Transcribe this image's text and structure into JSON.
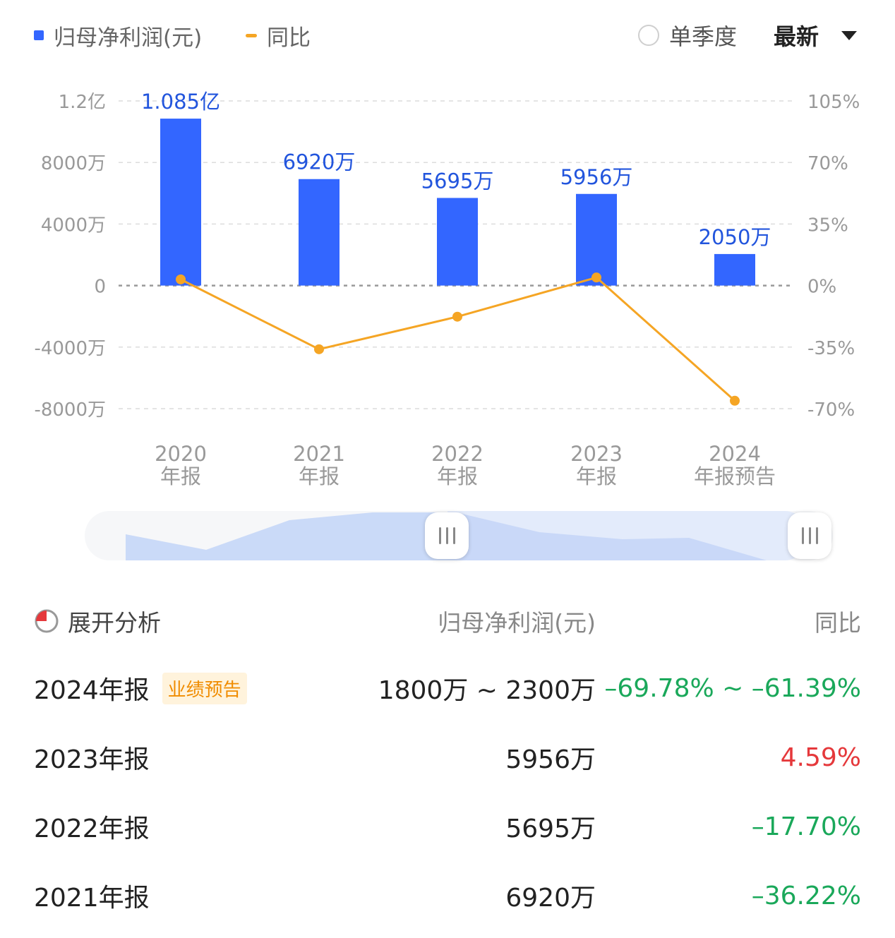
{
  "legend": {
    "bar_label": "归母净利润(元)",
    "line_label": "同比"
  },
  "controls": {
    "quarter_label": "单季度",
    "latest_label": "最新"
  },
  "colors": {
    "bar": "#3366ff",
    "line": "#f5a524",
    "negative": "#1aa85a",
    "positive": "#e5383b"
  },
  "chart_data": {
    "type": "bar",
    "categories": [
      [
        "2020",
        "年报"
      ],
      [
        "2021",
        "年报"
      ],
      [
        "2022",
        "年报"
      ],
      [
        "2023",
        "年报"
      ],
      [
        "2024",
        "年报预告"
      ]
    ],
    "series": [
      {
        "name": "归母净利润(元)",
        "type": "bar",
        "axis": "left",
        "unit": "万",
        "values": [
          10850,
          6920,
          5695,
          5956,
          2050
        ],
        "labels": [
          "1.085亿",
          "6920万",
          "5695万",
          "5956万",
          "2050万"
        ]
      },
      {
        "name": "同比",
        "type": "line",
        "axis": "right",
        "unit": "%",
        "values": [
          3.5,
          -36.22,
          -17.7,
          4.59,
          -65.5
        ]
      }
    ],
    "left_axis": {
      "ticks": [
        12000,
        8000,
        4000,
        0,
        -4000,
        -8000
      ],
      "tick_labels": [
        "1.2亿",
        "8000万",
        "4000万",
        "0",
        "-4000万",
        "-8000万"
      ],
      "range": [
        -8000,
        12000
      ]
    },
    "right_axis": {
      "ticks": [
        105,
        70,
        35,
        0,
        -35,
        -70
      ],
      "tick_labels": [
        "105%",
        "70%",
        "35%",
        "0%",
        "-35%",
        "-70%"
      ],
      "range": [
        -70,
        105
      ]
    },
    "grid": true
  },
  "table": {
    "title": "展开分析",
    "col_value": "归母净利润(元)",
    "col_yoy": "同比",
    "rows": [
      {
        "period": "2024年报",
        "badge": "业绩预告",
        "value": "1800万 ~ 2300万",
        "yoy": "–69.78% ~ –61.39%",
        "tone": "neg"
      },
      {
        "period": "2023年报",
        "value": "5956万",
        "yoy": "4.59%",
        "tone": "pos"
      },
      {
        "period": "2022年报",
        "value": "5695万",
        "yoy": "–17.70%",
        "tone": "neg"
      },
      {
        "period": "2021年报",
        "value": "6920万",
        "yoy": "–36.22%",
        "tone": "neg"
      }
    ]
  }
}
